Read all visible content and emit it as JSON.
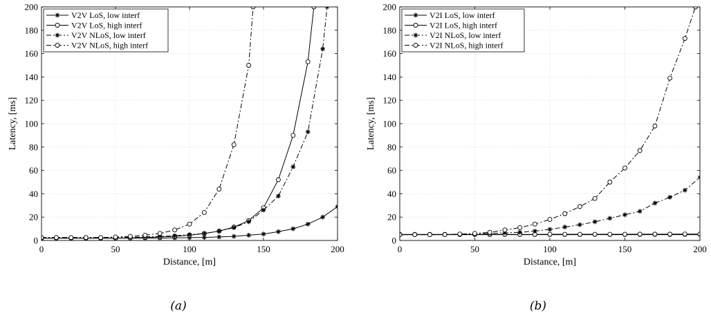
{
  "chart_data": [
    {
      "type": "line",
      "caption": "(a)",
      "xlabel": "Distance, [m]",
      "ylabel": "Latency, [ms]",
      "xlim": [
        0,
        200
      ],
      "ylim": [
        0,
        200
      ],
      "xticks": [
        0,
        50,
        100,
        150,
        200
      ],
      "yticks": [
        0,
        20,
        40,
        60,
        80,
        100,
        120,
        140,
        160,
        180,
        200
      ],
      "grid": true,
      "legend_position": "top-left",
      "series": [
        {
          "name": "V2V LoS, low interf",
          "line": "solid",
          "marker": "star",
          "x": [
            0,
            10,
            20,
            30,
            40,
            50,
            60,
            70,
            80,
            90,
            100,
            110,
            120,
            130,
            140,
            150,
            160,
            170,
            180,
            190,
            200
          ],
          "y": [
            2,
            2,
            2,
            2,
            2,
            2,
            2,
            2,
            2,
            2.2,
            2.4,
            2.6,
            3,
            3.5,
            4.5,
            5.5,
            7.5,
            10,
            14,
            20,
            29
          ]
        },
        {
          "name": "V2V LoS, high interf",
          "line": "solid",
          "marker": "circle",
          "x": [
            0,
            10,
            20,
            30,
            40,
            50,
            60,
            70,
            80,
            90,
            100,
            110,
            120,
            130,
            140,
            150,
            160,
            170,
            180,
            184
          ],
          "y": [
            2,
            2,
            2,
            2,
            2,
            2,
            2.2,
            2.5,
            3,
            3.5,
            4.5,
            6,
            8,
            11.5,
            17,
            28,
            52,
            90,
            153,
            200
          ]
        },
        {
          "name": "V2V NLoS, low interf",
          "line": "dashdot",
          "marker": "star",
          "x": [
            0,
            10,
            20,
            30,
            40,
            50,
            60,
            70,
            80,
            90,
            100,
            110,
            120,
            130,
            140,
            150,
            160,
            170,
            180,
            190,
            193
          ],
          "y": [
            2.5,
            2.5,
            2.5,
            2.5,
            2.5,
            2.5,
            2.7,
            3,
            3.5,
            4,
            5,
            6,
            8,
            11,
            16,
            26,
            38,
            63,
            93,
            164,
            200
          ]
        },
        {
          "name": "V2V NLoS, high interf",
          "line": "dashdot",
          "marker": "circle",
          "x": [
            0,
            10,
            20,
            30,
            40,
            50,
            60,
            70,
            80,
            90,
            100,
            110,
            120,
            130,
            140,
            143
          ],
          "y": [
            2.5,
            2.5,
            2.5,
            2.5,
            2.5,
            3,
            3.5,
            4.5,
            6,
            9,
            14,
            24,
            44,
            82,
            150,
            200
          ]
        }
      ]
    },
    {
      "type": "line",
      "caption": "(b)",
      "xlabel": "Distance, [m]",
      "ylabel": "Latency, [ms]",
      "xlim": [
        0,
        200
      ],
      "ylim": [
        0,
        200
      ],
      "xticks": [
        0,
        50,
        100,
        150,
        200
      ],
      "yticks": [
        0,
        20,
        40,
        60,
        80,
        100,
        120,
        140,
        160,
        180,
        200
      ],
      "grid": true,
      "legend_position": "top-left",
      "series": [
        {
          "name": "V2I LoS, low interf",
          "line": "solid",
          "marker": "star",
          "x": [
            0,
            10,
            20,
            30,
            40,
            50,
            60,
            70,
            80,
            90,
            100,
            110,
            120,
            130,
            140,
            150,
            160,
            170,
            180,
            190,
            200
          ],
          "y": [
            5,
            5,
            5,
            5,
            5,
            5,
            5,
            5,
            5,
            5,
            5,
            5,
            5,
            5,
            5,
            5,
            5,
            5,
            5,
            5,
            5
          ]
        },
        {
          "name": "V2I LoS, high interf",
          "line": "solid",
          "marker": "circle",
          "x": [
            0,
            10,
            20,
            30,
            40,
            50,
            60,
            70,
            80,
            90,
            100,
            110,
            120,
            130,
            140,
            150,
            160,
            170,
            180,
            190,
            200
          ],
          "y": [
            5.2,
            5.2,
            5.2,
            5.2,
            5.2,
            5.2,
            5.2,
            5.2,
            5.2,
            5.2,
            5.3,
            5.3,
            5.3,
            5.3,
            5.3,
            5.3,
            5.4,
            5.4,
            5.4,
            5.5,
            5.5
          ]
        },
        {
          "name": "V2I NLoS, low interf",
          "line": "dashdot",
          "marker": "star",
          "x": [
            0,
            10,
            20,
            30,
            40,
            50,
            60,
            70,
            80,
            90,
            100,
            110,
            120,
            130,
            140,
            150,
            160,
            170,
            180,
            190,
            200
          ],
          "y": [
            5,
            5,
            5,
            5,
            5.2,
            5.5,
            6,
            6.5,
            7,
            8,
            9.5,
            11.5,
            13.5,
            16,
            19,
            22,
            25,
            32,
            37,
            43,
            54
          ]
        },
        {
          "name": "V2I NLoS, high interf",
          "line": "dashdot",
          "marker": "circle",
          "x": [
            0,
            10,
            20,
            30,
            40,
            50,
            60,
            70,
            80,
            90,
            100,
            110,
            120,
            130,
            140,
            150,
            160,
            170,
            180,
            190,
            197
          ],
          "y": [
            5,
            5,
            5,
            5,
            5.5,
            6,
            7,
            9,
            11,
            14,
            18,
            23,
            29,
            36,
            50,
            62,
            77,
            98,
            139,
            173,
            200
          ]
        }
      ]
    }
  ]
}
